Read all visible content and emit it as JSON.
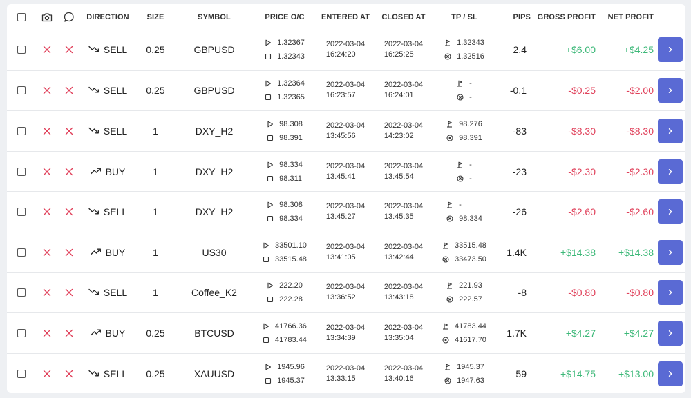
{
  "header": {
    "direction": "DIRECTION",
    "size": "SIZE",
    "symbol": "SYMBOL",
    "price_oc": "PRICE O/C",
    "entered_at": "ENTERED AT",
    "closed_at": "CLOSED AT",
    "tp_sl": "TP / SL",
    "pips": "PIPS",
    "gross_profit": "GROSS PROFIT",
    "net_profit": "NET PROFIT"
  },
  "colors": {
    "positive": "#3cb878",
    "negative": "#e0405a",
    "accent": "#5a6ad4"
  },
  "rows": [
    {
      "direction": "SELL",
      "trend": "down",
      "size": "0.25",
      "symbol": "GBPUSD",
      "open": "1.32367",
      "close": "1.32343",
      "entered_date": "2022-03-04",
      "entered_time": "16:24:20",
      "closed_date": "2022-03-04",
      "closed_time": "16:25:25",
      "tp": "1.32343",
      "sl": "1.32516",
      "pips": "2.4",
      "gross": "+$6.00",
      "net": "+$4.25",
      "sign": "pos"
    },
    {
      "direction": "SELL",
      "trend": "down",
      "size": "0.25",
      "symbol": "GBPUSD",
      "open": "1.32364",
      "close": "1.32365",
      "entered_date": "2022-03-04",
      "entered_time": "16:23:57",
      "closed_date": "2022-03-04",
      "closed_time": "16:24:01",
      "tp": "-",
      "sl": "-",
      "pips": "-0.1",
      "gross": "-$0.25",
      "net": "-$2.00",
      "sign": "neg"
    },
    {
      "direction": "SELL",
      "trend": "down",
      "size": "1",
      "symbol": "DXY_H2",
      "open": "98.308",
      "close": "98.391",
      "entered_date": "2022-03-04",
      "entered_time": "13:45:56",
      "closed_date": "2022-03-04",
      "closed_time": "14:23:02",
      "tp": "98.276",
      "sl": "98.391",
      "pips": "-83",
      "gross": "-$8.30",
      "net": "-$8.30",
      "sign": "neg"
    },
    {
      "direction": "BUY",
      "trend": "up",
      "size": "1",
      "symbol": "DXY_H2",
      "open": "98.334",
      "close": "98.311",
      "entered_date": "2022-03-04",
      "entered_time": "13:45:41",
      "closed_date": "2022-03-04",
      "closed_time": "13:45:54",
      "tp": "-",
      "sl": "-",
      "pips": "-23",
      "gross": "-$2.30",
      "net": "-$2.30",
      "sign": "neg"
    },
    {
      "direction": "SELL",
      "trend": "down",
      "size": "1",
      "symbol": "DXY_H2",
      "open": "98.308",
      "close": "98.334",
      "entered_date": "2022-03-04",
      "entered_time": "13:45:27",
      "closed_date": "2022-03-04",
      "closed_time": "13:45:35",
      "tp": "-",
      "sl": "98.334",
      "pips": "-26",
      "gross": "-$2.60",
      "net": "-$2.60",
      "sign": "neg"
    },
    {
      "direction": "BUY",
      "trend": "up",
      "size": "1",
      "symbol": "US30",
      "open": "33501.10",
      "close": "33515.48",
      "entered_date": "2022-03-04",
      "entered_time": "13:41:05",
      "closed_date": "2022-03-04",
      "closed_time": "13:42:44",
      "tp": "33515.48",
      "sl": "33473.50",
      "pips": "1.4K",
      "gross": "+$14.38",
      "net": "+$14.38",
      "sign": "pos"
    },
    {
      "direction": "SELL",
      "trend": "down",
      "size": "1",
      "symbol": "Coffee_K2",
      "open": "222.20",
      "close": "222.28",
      "entered_date": "2022-03-04",
      "entered_time": "13:36:52",
      "closed_date": "2022-03-04",
      "closed_time": "13:43:18",
      "tp": "221.93",
      "sl": "222.57",
      "pips": "-8",
      "gross": "-$0.80",
      "net": "-$0.80",
      "sign": "neg"
    },
    {
      "direction": "BUY",
      "trend": "up",
      "size": "0.25",
      "symbol": "BTCUSD",
      "open": "41766.36",
      "close": "41783.44",
      "entered_date": "2022-03-04",
      "entered_time": "13:34:39",
      "closed_date": "2022-03-04",
      "closed_time": "13:35:04",
      "tp": "41783.44",
      "sl": "41617.70",
      "pips": "1.7K",
      "gross": "+$4.27",
      "net": "+$4.27",
      "sign": "pos"
    },
    {
      "direction": "SELL",
      "trend": "down",
      "size": "0.25",
      "symbol": "XAUUSD",
      "open": "1945.96",
      "close": "1945.37",
      "entered_date": "2022-03-04",
      "entered_time": "13:33:15",
      "closed_date": "2022-03-04",
      "closed_time": "13:40:16",
      "tp": "1945.37",
      "sl": "1947.63",
      "pips": "59",
      "gross": "+$14.75",
      "net": "+$13.00",
      "sign": "pos"
    }
  ]
}
